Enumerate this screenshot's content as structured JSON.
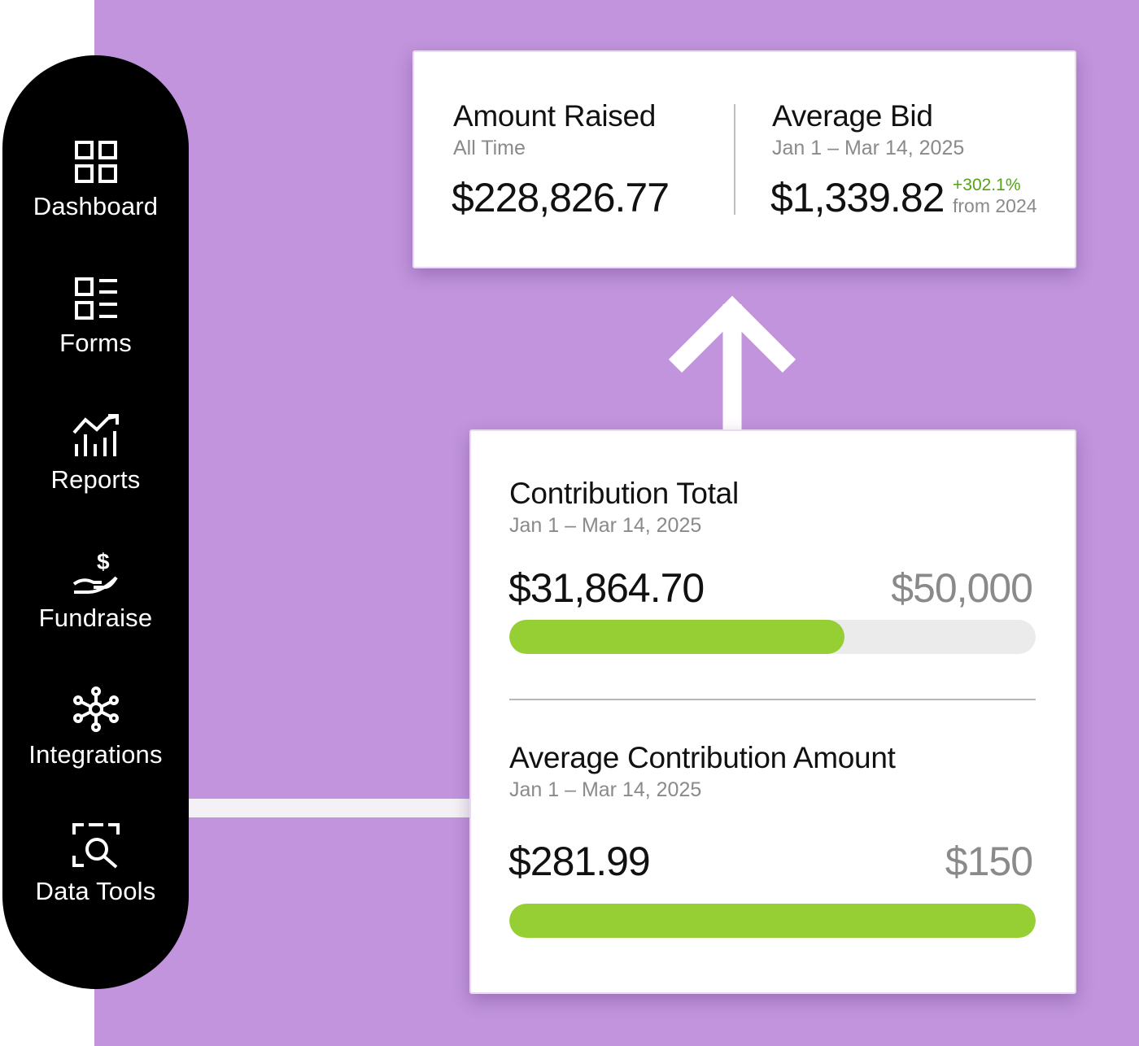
{
  "sidebar": {
    "items": [
      {
        "label": "Dashboard",
        "icon": "dashboard-grid-icon"
      },
      {
        "label": "Forms",
        "icon": "forms-list-icon"
      },
      {
        "label": "Reports",
        "icon": "reports-chart-icon"
      },
      {
        "label": "Fundraise",
        "icon": "fundraise-hand-dollar-icon"
      },
      {
        "label": "Integrations",
        "icon": "integrations-network-icon"
      },
      {
        "label": "Data Tools",
        "icon": "data-tools-search-icon"
      }
    ]
  },
  "amount_raised": {
    "title": "Amount Raised",
    "period": "All Time",
    "value": "$228,826.77"
  },
  "average_bid": {
    "title": "Average Bid",
    "period": "Jan 1 – Mar 14, 2025",
    "value": "$1,339.82",
    "change": "+302.1%",
    "change_label": "from 2024"
  },
  "contribution_total": {
    "title": "Contribution Total",
    "period": "Jan 1 – Mar 14, 2025",
    "value": "$31,864.70",
    "goal": "$50,000",
    "progress_fraction": 0.637
  },
  "average_contribution": {
    "title": "Average Contribution Amount",
    "period": "Jan 1 – Mar 14, 2025",
    "value": "$281.99",
    "goal": "$150",
    "progress_fraction": 1.0
  },
  "colors": {
    "background": "#c194dd",
    "sidebar": "#000000",
    "progress_fill": "#95cf34",
    "progress_track": "#ebebeb",
    "positive_change": "#55a21a"
  }
}
